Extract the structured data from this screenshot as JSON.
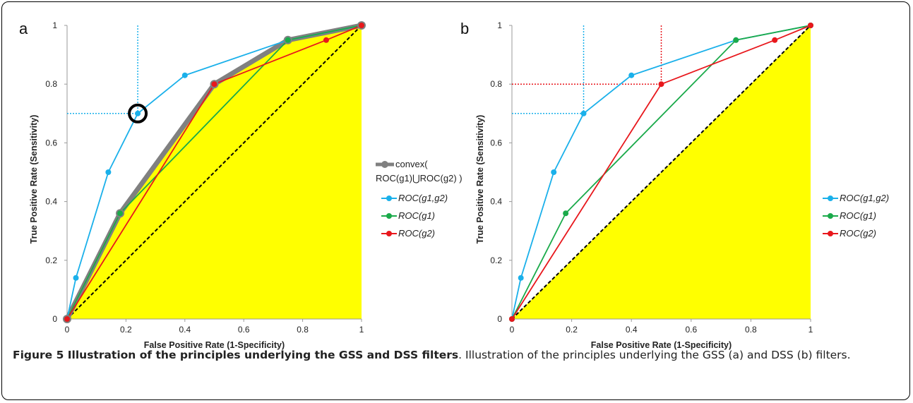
{
  "figure_caption": {
    "title": "Figure 5 Illustration of the principles underlying the GSS and DSS filters",
    "text": ". Illustration of the principles underlying the GSS (a) and DSS (b) filters."
  },
  "colors": {
    "fill": "#ffff00",
    "hull": "#808080",
    "g1g2": "#1ab0ea",
    "g1": "#1aaa4a",
    "g2": "#e8171c",
    "diagonal": "#000000"
  },
  "chart_data": [
    {
      "panel_label": "a",
      "type": "line",
      "xlabel": "False Positive Rate (1-Specificity)",
      "ylabel": "True Positive Rate (Sensitivity)",
      "xlim": [
        0,
        1
      ],
      "ylim": [
        0,
        1
      ],
      "x_ticks": [
        "0",
        "0.2",
        "0.4",
        "0.6",
        "0.8",
        "1"
      ],
      "y_ticks": [
        "0",
        "0.2",
        "0.4",
        "0.6",
        "0.8",
        "1"
      ],
      "grid": false,
      "legend_position": "right",
      "fill_area": "under convex(ROC(g1)⋃ROC(g2))",
      "series": [
        {
          "name": "convex(\nROC(g1)⋃ROC(g2) )",
          "legend": [
            "convex(",
            "ROC(g1)⋃ROC(g2) )"
          ],
          "key": "hull",
          "x": [
            0,
            0.18,
            0.5,
            0.75,
            1
          ],
          "y": [
            0,
            0.36,
            0.8,
            0.95,
            1
          ]
        },
        {
          "name": "ROC(g1,g2)",
          "key": "g1g2",
          "x": [
            0,
            0.03,
            0.14,
            0.24,
            0.4,
            0.75,
            1
          ],
          "y": [
            0,
            0.14,
            0.5,
            0.7,
            0.83,
            0.95,
            1
          ]
        },
        {
          "name": "ROC(g1)",
          "key": "g1",
          "x": [
            0,
            0.18,
            0.75,
            1
          ],
          "y": [
            0,
            0.36,
            0.95,
            1
          ]
        },
        {
          "name": "ROC(g2)",
          "key": "g2",
          "x": [
            0,
            0.5,
            0.88,
            1
          ],
          "y": [
            0,
            0.8,
            0.95,
            1
          ]
        }
      ],
      "reference_lines": [
        {
          "series": "ROC(g1,g2)",
          "x": 0.24,
          "y": 0.7
        }
      ],
      "highlight_point": {
        "x": 0.24,
        "y": 0.7
      }
    },
    {
      "panel_label": "b",
      "type": "line",
      "xlabel": "False Positive Rate (1-Specificity)",
      "ylabel": "True Positive Rate (Sensitivity)",
      "xlim": [
        0,
        1
      ],
      "ylim": [
        0,
        1
      ],
      "x_ticks": [
        "0",
        "0.2",
        "0.4",
        "0.6",
        "0.8",
        "1"
      ],
      "y_ticks": [
        "0",
        "0.2",
        "0.4",
        "0.6",
        "0.8",
        "1"
      ],
      "grid": false,
      "legend_position": "right",
      "fill_area": "below diagonal",
      "series": [
        {
          "name": "ROC(g1,g2)",
          "key": "g1g2",
          "x": [
            0,
            0.03,
            0.14,
            0.24,
            0.4,
            0.75,
            1
          ],
          "y": [
            0,
            0.14,
            0.5,
            0.7,
            0.83,
            0.95,
            1
          ]
        },
        {
          "name": "ROC(g1)",
          "key": "g1",
          "x": [
            0,
            0.18,
            0.75,
            1
          ],
          "y": [
            0,
            0.36,
            0.95,
            1
          ]
        },
        {
          "name": "ROC(g2)",
          "key": "g2",
          "x": [
            0,
            0.5,
            0.88,
            1
          ],
          "y": [
            0,
            0.8,
            0.95,
            1
          ]
        }
      ],
      "reference_lines": [
        {
          "series": "ROC(g1,g2)",
          "x": 0.24,
          "y": 0.7
        },
        {
          "series": "ROC(g2)",
          "x": 0.5,
          "y": 0.8
        }
      ]
    }
  ]
}
